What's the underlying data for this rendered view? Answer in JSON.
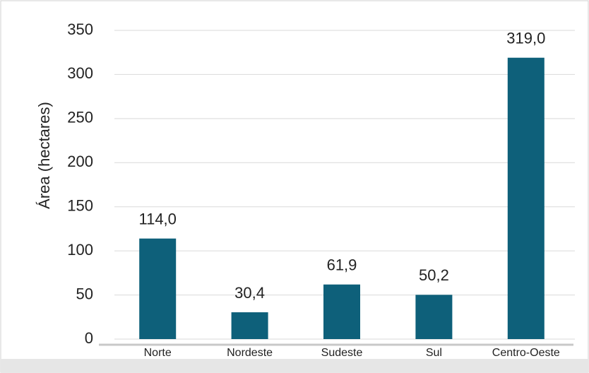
{
  "chart_data": {
    "type": "bar",
    "y_label": "Área (hectares)",
    "categories": [
      "Norte",
      "Nordeste",
      "Sudeste",
      "Sul",
      "Centro-Oeste"
    ],
    "values": [
      114.0,
      30.4,
      61.9,
      50.2,
      319.0
    ],
    "value_labels": [
      "114,0",
      "30,4",
      "61,9",
      "50,2",
      "319,0"
    ],
    "color": "#0e607a",
    "ylim": [
      0,
      350
    ],
    "yticks": [
      0,
      50,
      100,
      150,
      200,
      250,
      300,
      350
    ],
    "grid": true
  }
}
